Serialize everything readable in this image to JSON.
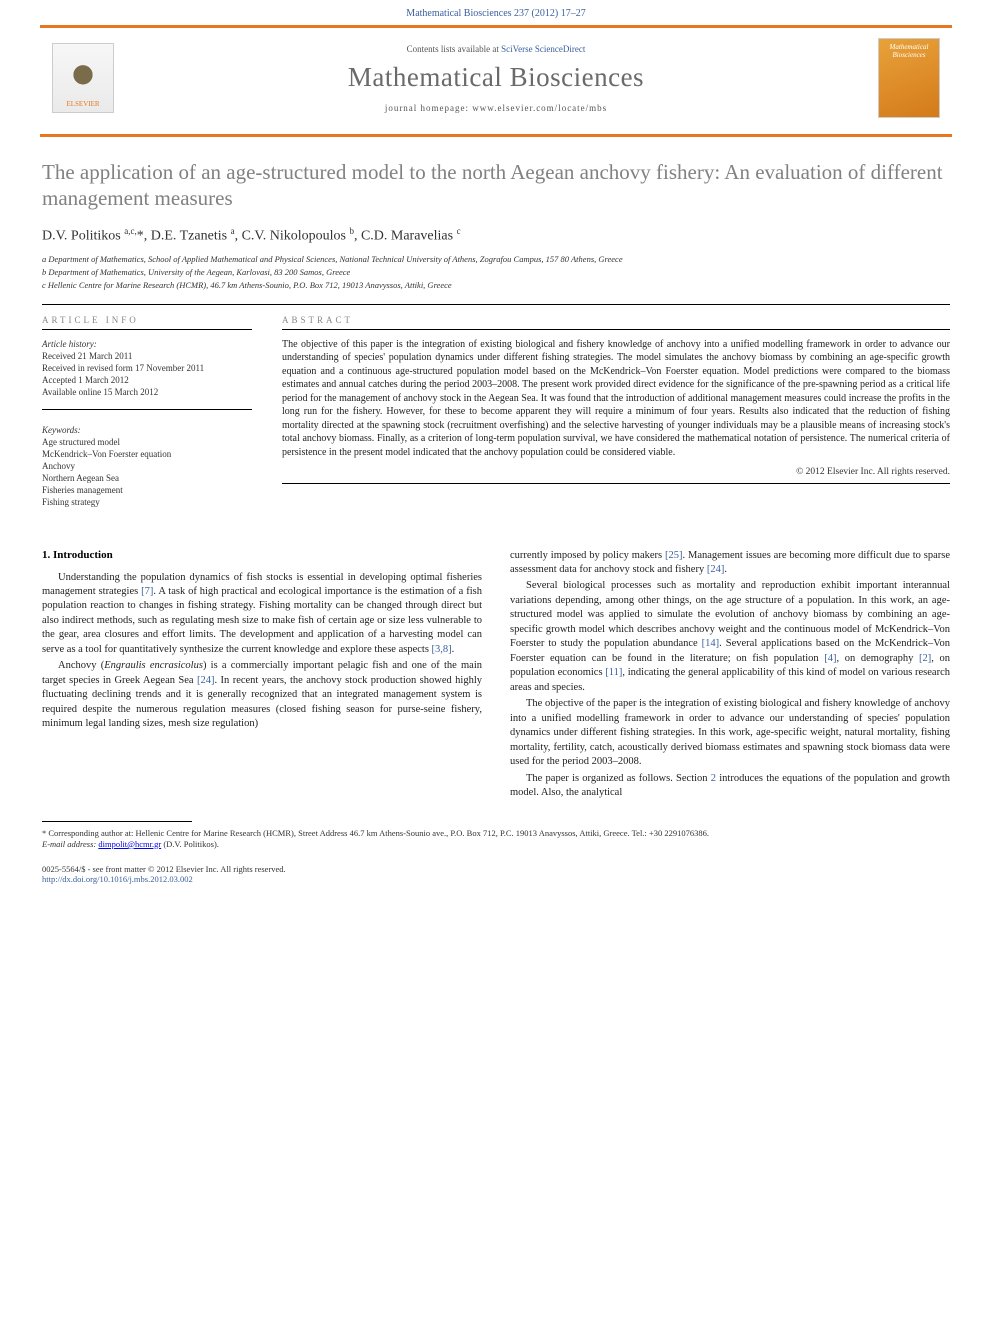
{
  "header": {
    "running_head": "Mathematical Biosciences 237 (2012) 17–27",
    "contents_prefix": "Contents lists available at ",
    "contents_link": "SciVerse ScienceDirect",
    "journal_name": "Mathematical Biosciences",
    "homepage_label": "journal homepage: www.elsevier.com/locate/mbs",
    "publisher_logo_label": "ELSEVIER",
    "cover_logo_label": "Mathematical Biosciences"
  },
  "title": "The application of an age-structured model to the north Aegean anchovy fishery: An evaluation of different management measures",
  "authors_html": "D.V. Politikos <sup>a,c,</sup><span class='star'>*</span>, D.E. Tzanetis <sup>a</sup>, C.V. Nikolopoulos <sup>b</sup>, C.D. Maravelias <sup>c</sup>",
  "affiliations": {
    "a": "a Department of Mathematics, School of Applied Mathematical and Physical Sciences, National Technical University of Athens, Zografou Campus, 157 80 Athens, Greece",
    "b": "b Department of Mathematics, University of the Aegean, Karlovasi, 83 200 Samos, Greece",
    "c": "c Hellenic Centre for Marine Research (HCMR), 46.7 km Athens-Sounio, P.O. Box 712, 19013 Anavyssos, Attiki, Greece"
  },
  "article_info": {
    "label": "ARTICLE INFO",
    "history_label": "Article history:",
    "received": "Received 21 March 2011",
    "revised": "Received in revised form 17 November 2011",
    "accepted": "Accepted 1 March 2012",
    "online": "Available online 15 March 2012",
    "keywords_label": "Keywords:",
    "keywords": [
      "Age structured model",
      "McKendrick–Von Foerster equation",
      "Anchovy",
      "Northern Aegean Sea",
      "Fisheries management",
      "Fishing strategy"
    ]
  },
  "abstract": {
    "label": "ABSTRACT",
    "text": "The objective of this paper is the integration of existing biological and fishery knowledge of anchovy into a unified modelling framework in order to advance our understanding of species' population dynamics under different fishing strategies. The model simulates the anchovy biomass by combining an age-specific growth equation and a continuous age-structured population model based on the McKendrick–Von Foerster equation. Model predictions were compared to the biomass estimates and annual catches during the period 2003–2008. The present work provided direct evidence for the significance of the pre-spawning period as a critical life period for the management of anchovy stock in the Aegean Sea. It was found that the introduction of additional management measures could increase the profits in the long run for the fishery. However, for these to become apparent they will require a minimum of four years. Results also indicated that the reduction of fishing mortality directed at the spawning stock (recruitment overfishing) and the selective harvesting of younger individuals may be a plausible means of increasing stock's total anchovy biomass. Finally, as a criterion of long-term population survival, we have considered the mathematical notation of persistence. The numerical criteria of persistence in the present model indicated that the anchovy population could be considered viable.",
    "copyright": "© 2012 Elsevier Inc. All rights reserved."
  },
  "body": {
    "section_heading": "1. Introduction",
    "left": [
      "Understanding the population dynamics of fish stocks is essential in developing optimal fisheries management strategies [7]. A task of high practical and ecological importance is the estimation of a fish population reaction to changes in fishing strategy. Fishing mortality can be changed through direct but also indirect methods, such as regulating mesh size to make fish of certain age or size less vulnerable to the gear, area closures and effort limits. The development and application of a harvesting model can serve as a tool for quantitatively synthesize the current knowledge and explore these aspects [3,8].",
      "Anchovy (Engraulis encrasicolus) is a commercially important pelagic fish and one of the main target species in Greek Aegean Sea [24]. In recent years, the anchovy stock production showed highly fluctuating declining trends and it is generally recognized that an integrated management system is required despite the numerous regulation measures (closed fishing season for purse-seine fishery, minimum legal landing sizes, mesh size regulation)"
    ],
    "right": [
      "currently imposed by policy makers [25]. Management issues are becoming more difficult due to sparse assessment data for anchovy stock and fishery [24].",
      "Several biological processes such as mortality and reproduction exhibit important interannual variations depending, among other things, on the age structure of a population. In this work, an age-structured model was applied to simulate the evolution of anchovy biomass by combining an age-specific growth model which describes anchovy weight and the continuous model of McKendrick–Von Foerster to study the population abundance [14]. Several applications based on the McKendrick–Von Foerster equation can be found in the literature; on fish population [4], on demography [2], on population economics [11], indicating the general applicability of this kind of model on various research areas and species.",
      "The objective of the paper is the integration of existing biological and fishery knowledge of anchovy into a unified modelling framework in order to advance our understanding of species' population dynamics under different fishing strategies. In this work, age-specific weight, natural mortality, fishing mortality, fertility, catch, acoustically derived biomass estimates and spawning stock biomass data were used for the period 2003–2008.",
      "The paper is organized as follows. Section 2 introduces the equations of the population and growth model. Also, the analytical"
    ]
  },
  "footnotes": {
    "corresponding": "* Corresponding author at: Hellenic Centre for Marine Research (HCMR), Street Address 46.7 km Athens-Sounio ave., P.O. Box 712, P.C. 19013 Anavyssos, Attiki, Greece. Tel.: +30 2291076386.",
    "email_label": "E-mail address: ",
    "email": "dimpolit@hcmr.gr",
    "email_author": " (D.V. Politikos)."
  },
  "footer": {
    "issn_line": "0025-5564/$ - see front matter © 2012 Elsevier Inc. All rights reserved.",
    "doi": "http://dx.doi.org/10.1016/j.mbs.2012.03.002"
  },
  "colors": {
    "rule_orange": "#e87722",
    "link_blue": "#3a5f9e",
    "title_gray": "#818181"
  }
}
